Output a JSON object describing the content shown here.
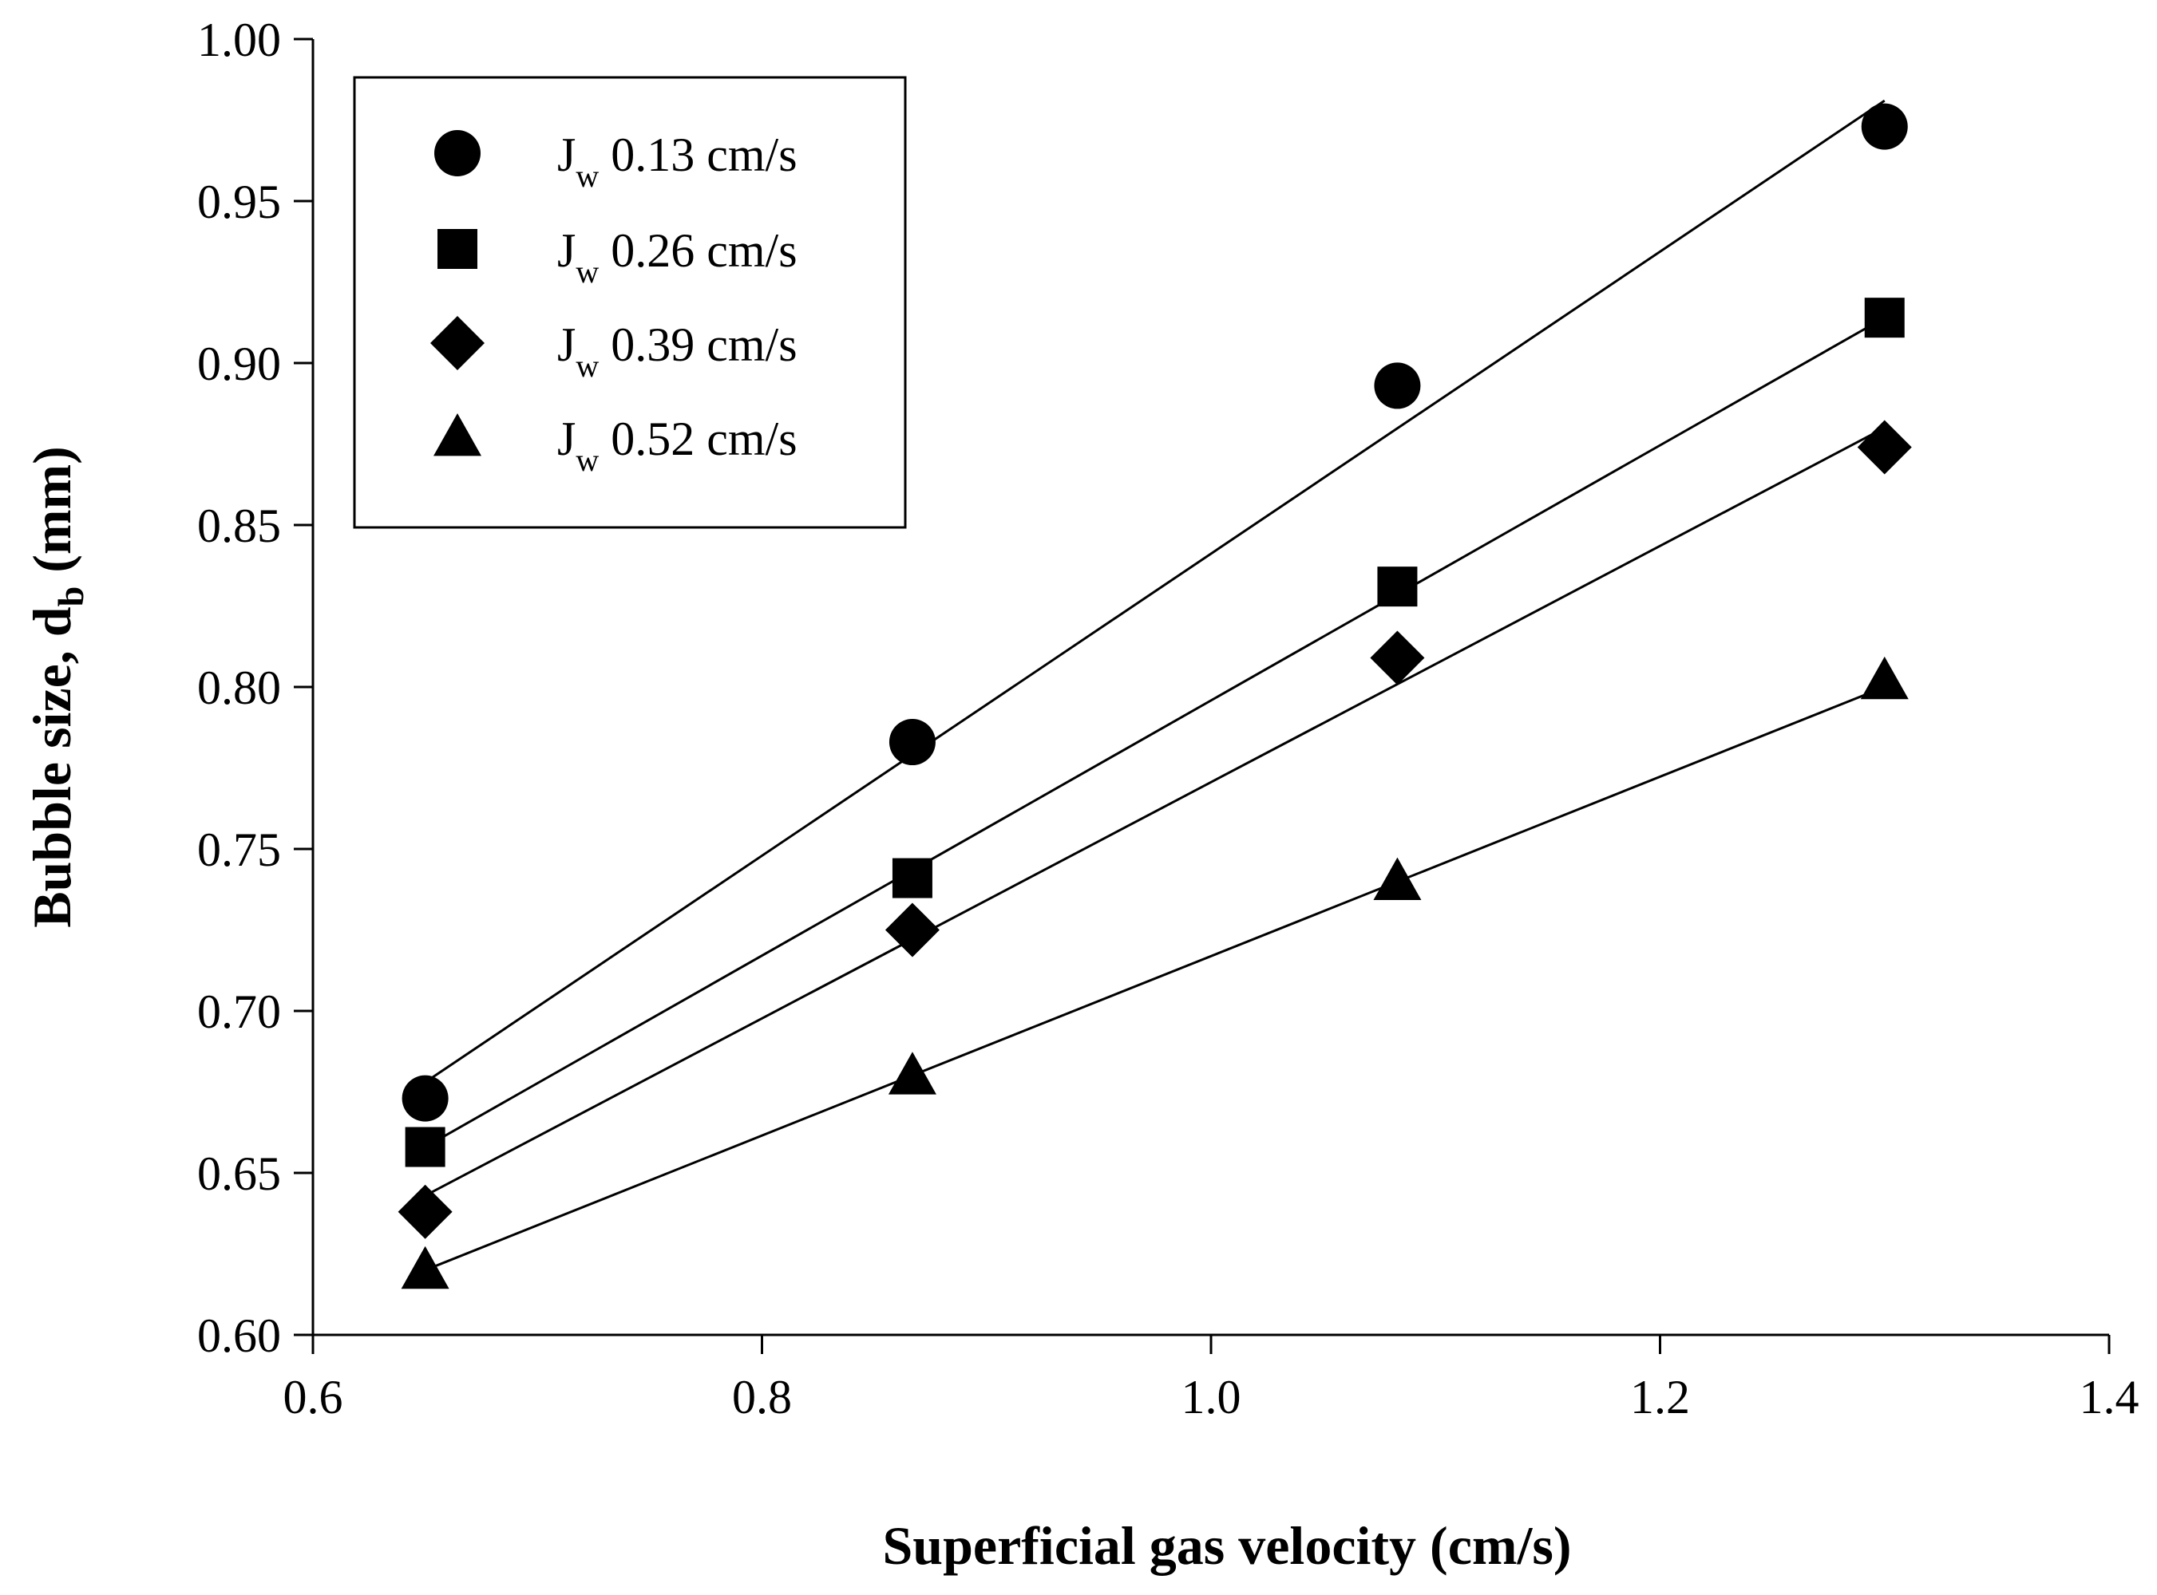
{
  "chart_data": {
    "type": "scatter",
    "title": "",
    "xlabel": "Superficial gas velocity (cm/s)",
    "ylabel": {
      "main": "Bubble size, d",
      "subscript": "b",
      "unit": " (mm)"
    },
    "xlim": [
      0.6,
      1.4
    ],
    "ylim": [
      0.6,
      1.0
    ],
    "grid": false,
    "legend_position": "top-left",
    "xticks": [
      "0.6",
      "0.8",
      "1.0",
      "1.2",
      "1.4"
    ],
    "yticks": [
      "0.60",
      "0.65",
      "0.70",
      "0.75",
      "0.80",
      "0.85",
      "0.90",
      "0.95",
      "1.00"
    ],
    "series": [
      {
        "name": "Jw 0.13 cm/s",
        "legend_main": "J",
        "legend_sub": "w",
        "legend_value": " 0.13 cm/s",
        "marker": "circle",
        "x": [
          0.65,
          0.867,
          1.083,
          1.3
        ],
        "y": [
          0.673,
          0.783,
          0.893,
          0.973
        ],
        "fit": [
          [
            0.65,
            0.678
          ],
          [
            1.3,
            0.981
          ]
        ]
      },
      {
        "name": "Jw 0.26 cm/s",
        "legend_main": "J",
        "legend_sub": "w",
        "legend_value": " 0.26 cm/s",
        "marker": "square",
        "x": [
          0.65,
          0.867,
          1.083,
          1.3
        ],
        "y": [
          0.658,
          0.741,
          0.831,
          0.914
        ],
        "fit": [
          [
            0.65,
            0.658
          ],
          [
            1.3,
            0.914
          ]
        ]
      },
      {
        "name": "Jw 0.39 cm/s",
        "legend_main": "J",
        "legend_sub": "w",
        "legend_value": " 0.39 cm/s",
        "marker": "diamond",
        "x": [
          0.65,
          0.867,
          1.083,
          1.3
        ],
        "y": [
          0.638,
          0.725,
          0.809,
          0.874
        ],
        "fit": [
          [
            0.65,
            0.643
          ],
          [
            1.3,
            0.88
          ]
        ]
      },
      {
        "name": "Jw 0.52 cm/s",
        "legend_main": "J",
        "legend_sub": "w",
        "legend_value": " 0.52 cm/s",
        "marker": "triangle",
        "x": [
          0.65,
          0.867,
          1.083,
          1.3
        ],
        "y": [
          0.62,
          0.68,
          0.74,
          0.802
        ],
        "fit": [
          [
            0.65,
            0.62
          ],
          [
            1.3,
            0.8
          ]
        ]
      }
    ],
    "colors": {
      "marker": "#000000",
      "line": "#000000",
      "axis": "#000000",
      "background": "#ffffff"
    }
  }
}
